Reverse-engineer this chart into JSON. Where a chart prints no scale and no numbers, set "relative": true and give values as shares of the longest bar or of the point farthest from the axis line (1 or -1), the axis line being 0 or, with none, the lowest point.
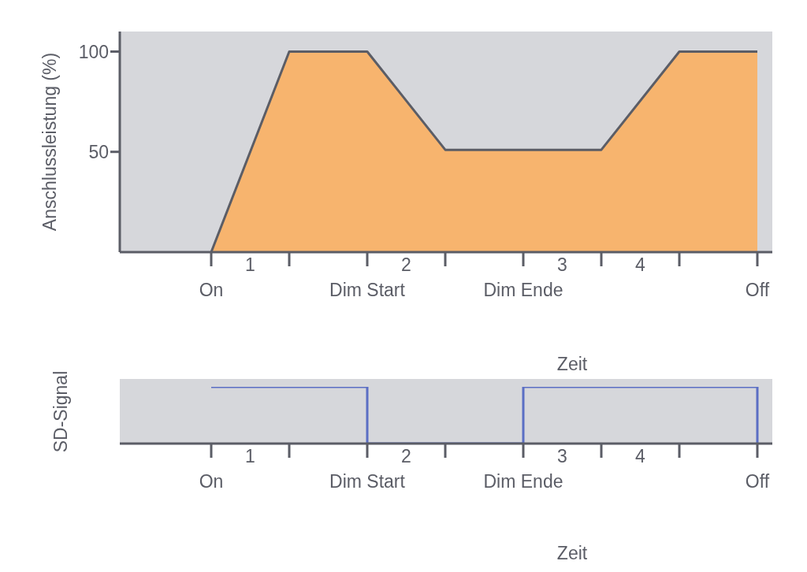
{
  "chart_data": [
    {
      "type": "area",
      "ylabel": "Anschlussleistung (%)",
      "xlabel": "Zeit",
      "categories": [
        "On",
        null,
        "Dim Start",
        null,
        "Dim Ende",
        null,
        null,
        "Off"
      ],
      "ylim": [
        0,
        110
      ],
      "yticks": [
        50,
        100
      ],
      "annotations": [
        "1",
        "2",
        "3",
        "4"
      ],
      "series": [
        {
          "color": "#f7b46e",
          "values": [
            0,
            100,
            100,
            51,
            51,
            51,
            100,
            100
          ]
        }
      ]
    },
    {
      "type": "step",
      "relative": true,
      "ylabel": "SD-Signal",
      "xlabel": "Zeit",
      "categories": [
        "On",
        null,
        "Dim Start",
        null,
        "Dim Ende",
        null,
        null,
        "Off"
      ],
      "annotations": [
        "1",
        "2",
        "3",
        "4"
      ],
      "series": [
        {
          "color": "#5b6ec4",
          "values": [
            1,
            1,
            0,
            0,
            1,
            1,
            1,
            0
          ]
        }
      ]
    }
  ]
}
